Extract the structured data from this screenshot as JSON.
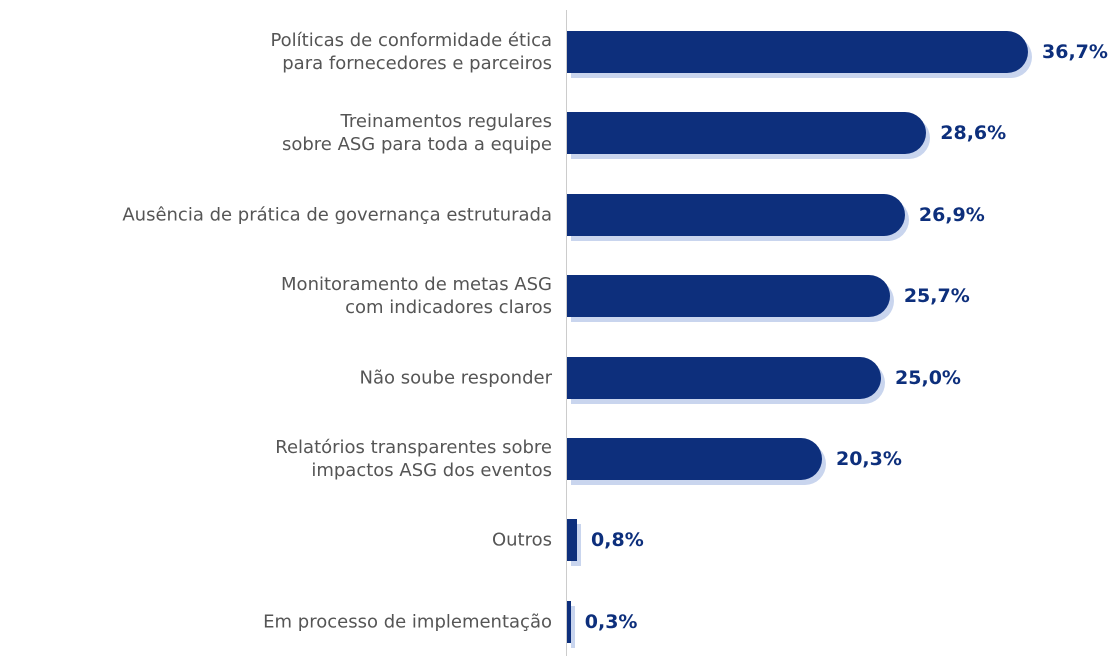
{
  "chart_data": {
    "type": "bar",
    "orientation": "horizontal",
    "categories": [
      "Políticas de conformidade ética\npara fornecedores e parceiros",
      "Treinamentos regulares\nsobre ASG para toda a equipe",
      "Ausência de prática de governança estruturada",
      "Monitoramento de metas ASG\ncom indicadores claros",
      "Não soube responder",
      "Relatórios transparentes sobre\nimpactos ASG dos eventos",
      "Outros",
      "Em processo de implementação"
    ],
    "values": [
      36.7,
      28.6,
      26.9,
      25.7,
      25.0,
      20.3,
      0.8,
      0.3
    ],
    "value_labels": [
      "36,7%",
      "28,6%",
      "26,9%",
      "25,7%",
      "25,0%",
      "20,3%",
      "0,8%",
      "0,3%"
    ],
    "color": "#0d2f7c"
  }
}
